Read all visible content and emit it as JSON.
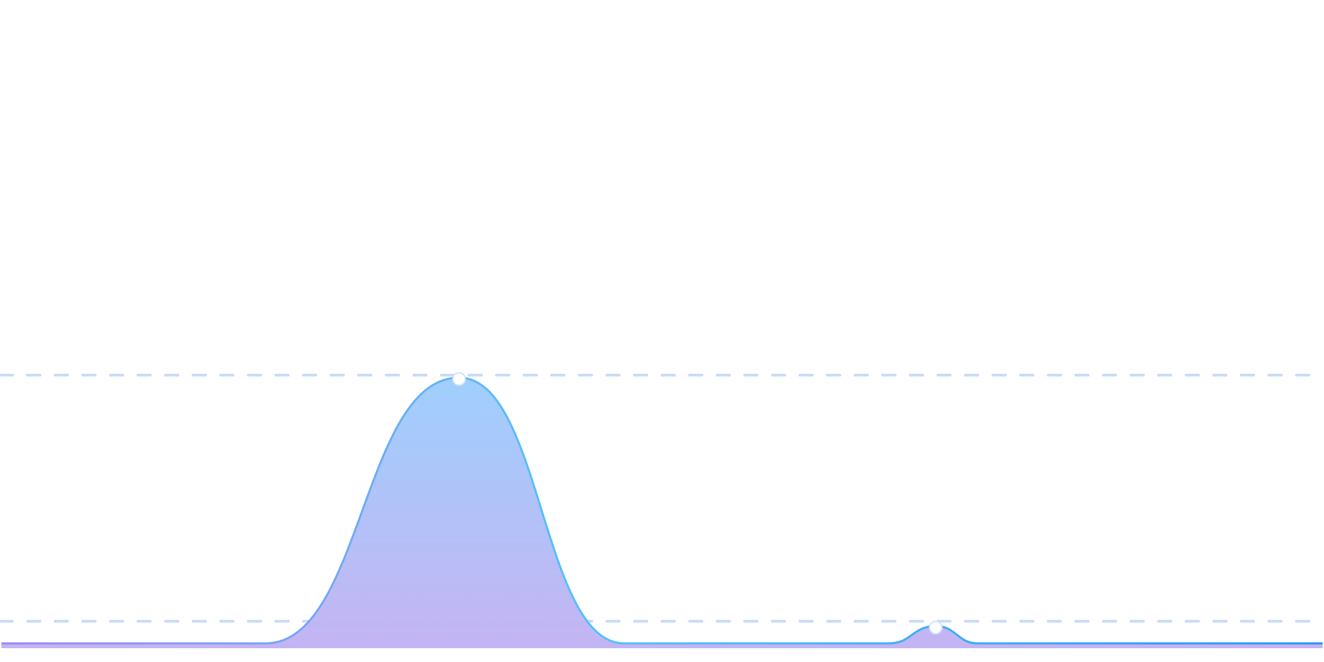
{
  "chart_data": {
    "type": "area",
    "x": [
      0,
      5.6,
      9.7,
      13.2,
      18.8,
      19.8,
      20.7,
      28
    ],
    "series": [
      {
        "color": "#4fc3f7",
        "values": [
          -9,
          -9,
          99,
          -9,
          -9,
          -2,
          -9,
          -9
        ]
      }
    ],
    "xlim": [
      0,
      28
    ],
    "ylim": [
      -9,
      100
    ],
    "yticks": [
      0,
      100
    ],
    "grid": true,
    "markers": [
      2,
      5
    ]
  }
}
